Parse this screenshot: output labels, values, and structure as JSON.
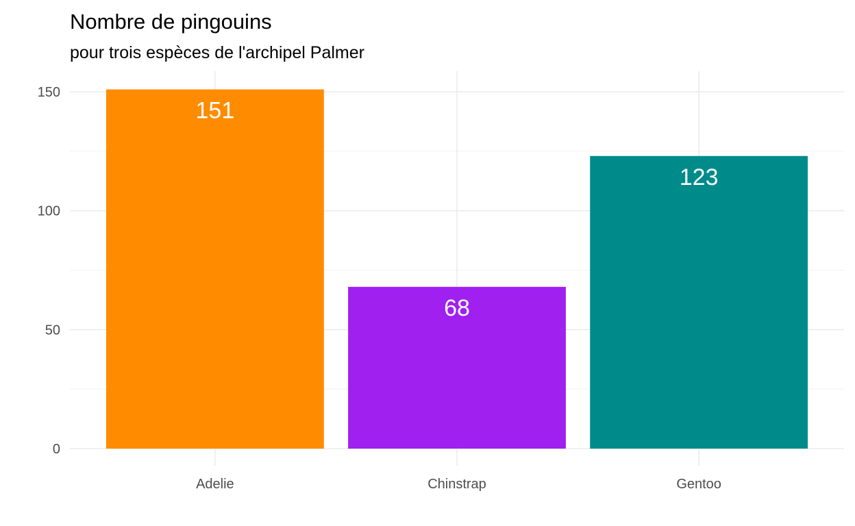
{
  "chart_data": {
    "type": "bar",
    "title": "Nombre de pingouins",
    "subtitle": "pour trois espèces de l'archipel Palmer",
    "xlabel": "",
    "ylabel": "",
    "categories": [
      "Adelie",
      "Chinstrap",
      "Gentoo"
    ],
    "values": [
      151,
      68,
      123
    ],
    "data_labels": [
      "151",
      "68",
      "123"
    ],
    "colors": [
      "#FF8C00",
      "#A020F0",
      "#008B8B"
    ],
    "ylim": [
      0,
      160
    ],
    "yticks": [
      0,
      50,
      100,
      150
    ],
    "ytick_labels": [
      "0",
      "50",
      "100",
      "150"
    ],
    "grid": true,
    "legend": "none"
  }
}
